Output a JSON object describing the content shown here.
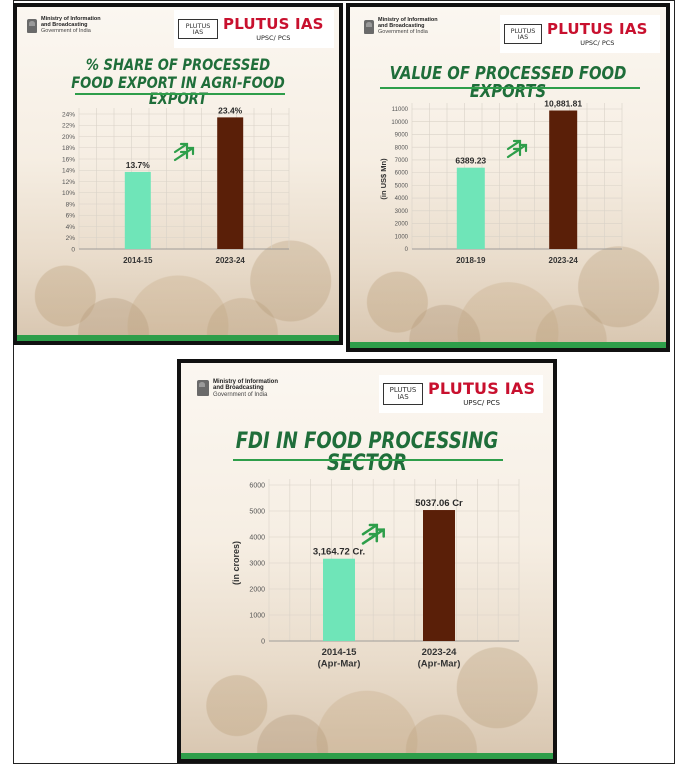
{
  "ministry": {
    "name_line1": "Ministry of Information",
    "name_line2": "and Broadcasting",
    "government": "Government of India"
  },
  "logo": {
    "box_line1": "PLUTUS",
    "box_line2": "IAS",
    "main": "PLUTUS IAS",
    "sub": "UPSC/ PCS"
  },
  "colors": {
    "green_bar": "#6fe5b8",
    "brown_bar": "#5a1f08",
    "title_green": "#1f6e3a",
    "accent_green": "#2e9e4a"
  },
  "chart_data": [
    {
      "type": "bar",
      "title_line1": "% SHARE OF PROCESSED",
      "title_line2": "FOOD EXPORT IN AGRI-FOOD EXPORT",
      "ylabel": "",
      "categories": [
        "2014-15",
        "2023-24"
      ],
      "values": [
        13.7,
        23.4
      ],
      "value_labels": [
        "13.7%",
        "23.4%"
      ],
      "ylim": [
        0,
        24
      ],
      "yticks": [
        0,
        2,
        4,
        6,
        8,
        10,
        12,
        14,
        16,
        18,
        20,
        22,
        24
      ],
      "ytick_labels": [
        "0",
        "2%",
        "4%",
        "6%",
        "8%",
        "10%",
        "12%",
        "14%",
        "16%",
        "18%",
        "20%",
        "22%",
        "24%"
      ],
      "grid": true
    },
    {
      "type": "bar",
      "title_line1": "VALUE OF PROCESSED FOOD EXPORTS",
      "title_line2": "",
      "ylabel": "(in US$ Mn)",
      "categories": [
        "2018-19",
        "2023-24"
      ],
      "values": [
        6389.23,
        10881.81
      ],
      "value_labels": [
        "6389.23",
        "10,881.81"
      ],
      "ylim": [
        0,
        11000
      ],
      "yticks": [
        0,
        1000,
        2000,
        3000,
        4000,
        5000,
        6000,
        7000,
        8000,
        9000,
        10000,
        11000
      ],
      "ytick_labels": [
        "0",
        "1000",
        "2000",
        "3000",
        "4000",
        "5000",
        "6000",
        "7000",
        "8000",
        "9000",
        "10000",
        "11000"
      ],
      "grid": true
    },
    {
      "type": "bar",
      "title_line1": "FDI IN FOOD PROCESSING SECTOR",
      "title_line2": "",
      "ylabel": "(in crores)",
      "categories": [
        "2014-15\n(Apr-Mar)",
        "2023-24\n(Apr-Mar)"
      ],
      "category_lines": [
        [
          "2014-15",
          "(Apr-Mar)"
        ],
        [
          "2023-24",
          "(Apr-Mar)"
        ]
      ],
      "values": [
        3164.72,
        5037.06
      ],
      "value_labels": [
        "3,164.72 Cr.",
        "5037.06 Cr"
      ],
      "ylim": [
        0,
        6000
      ],
      "yticks": [
        0,
        1000,
        2000,
        3000,
        4000,
        5000,
        6000
      ],
      "ytick_labels": [
        "0",
        "1000",
        "2000",
        "3000",
        "4000",
        "5000",
        "6000"
      ],
      "grid": true
    }
  ]
}
